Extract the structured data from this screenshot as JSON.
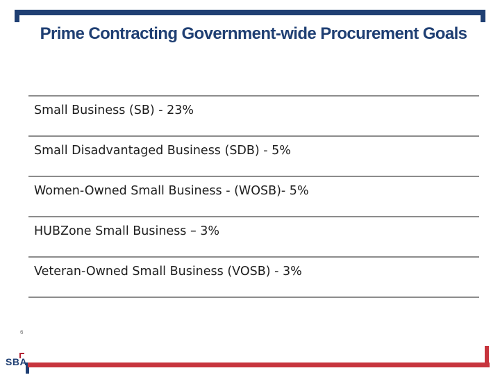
{
  "slide": {
    "title": "Prime Contracting Government-wide Procurement Goals",
    "page_number": "6",
    "logo_text": "SBA",
    "colors": {
      "accent_blue": "#1f3f73",
      "accent_red": "#c7343d",
      "rule_gray": "#8c8c8c"
    }
  },
  "goals": [
    {
      "text": "Small Business (SB) - 23%"
    },
    {
      "text": "Small Disadvantaged Business (SDB) - 5%"
    },
    {
      "text": "Women-Owned Small Business - (WOSB)- 5%"
    },
    {
      "text": "HUBZone Small Business – 3%"
    },
    {
      "text": "Veteran-Owned Small Business (VOSB) - 3%"
    }
  ]
}
